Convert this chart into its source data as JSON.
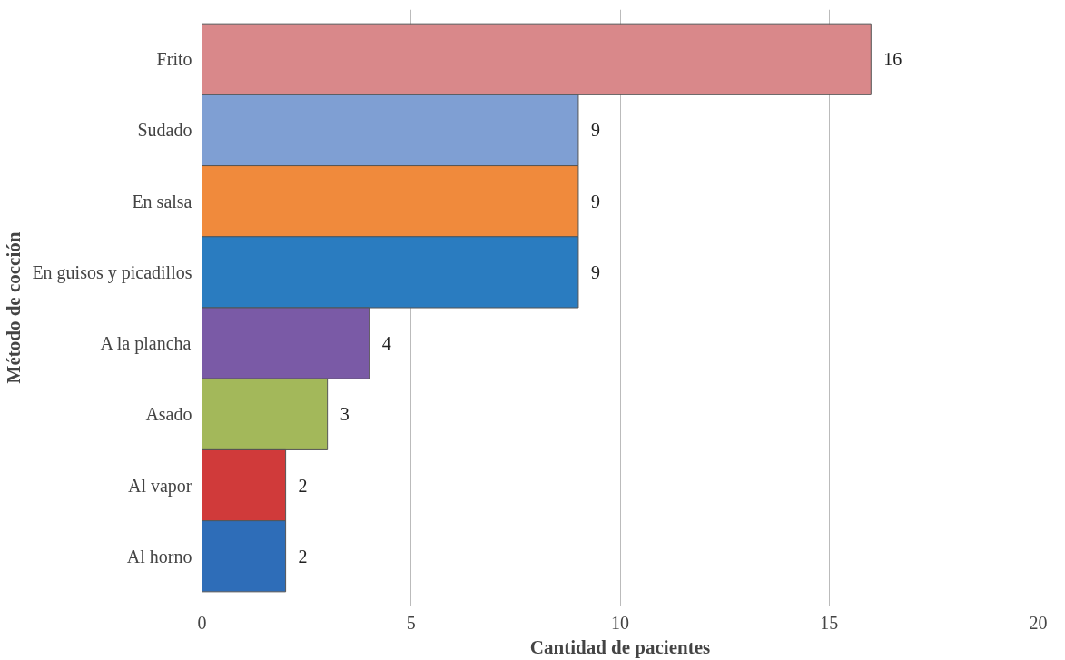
{
  "chart_data": {
    "type": "bar",
    "orientation": "horizontal",
    "xlabel": "Cantidad de pacientes",
    "ylabel": "Método de cocción",
    "categories": [
      "Frito",
      "Sudado",
      "En salsa",
      "En guisos y picadillos",
      "A la plancha",
      "Asado",
      "Al vapor",
      "Al horno"
    ],
    "values": [
      16,
      9,
      9,
      9,
      4,
      3,
      2,
      2
    ],
    "colors": [
      "#d9888a",
      "#7f9fd3",
      "#f08a3c",
      "#2a7cc0",
      "#7a5aa6",
      "#a3b85a",
      "#d03a3a",
      "#2e6db8"
    ],
    "xlim": [
      0,
      20
    ],
    "xticks": [
      0,
      5,
      10,
      15,
      20
    ],
    "grid": "x",
    "data_labels": true
  }
}
